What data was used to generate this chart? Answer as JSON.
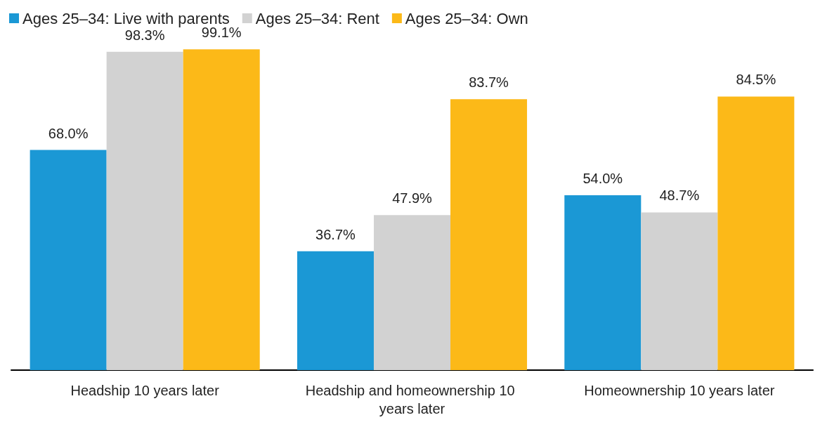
{
  "chart_data": {
    "type": "bar",
    "categories": [
      "Headship 10 years later",
      "Headship and homeownership 10 years later",
      "Homeownership 10 years later"
    ],
    "series": [
      {
        "name": "Ages 25–34: Live with parents",
        "color": "#1b98d5",
        "values": [
          68.0,
          36.7,
          54.0
        ],
        "value_labels": [
          "68.0%",
          "36.7%",
          "54.0%"
        ]
      },
      {
        "name": "Ages 25–34: Rent",
        "color": "#d2d2d2",
        "values": [
          98.3,
          47.9,
          48.7
        ],
        "value_labels": [
          "98.3%",
          "47.9%",
          "48.7%"
        ]
      },
      {
        "name": "Ages 25–34: Own",
        "color": "#fcb918",
        "values": [
          99.1,
          83.7,
          84.5
        ],
        "value_labels": [
          "99.1%",
          "83.7%",
          "84.5%"
        ]
      }
    ],
    "legend": "top left",
    "grid": false
  }
}
